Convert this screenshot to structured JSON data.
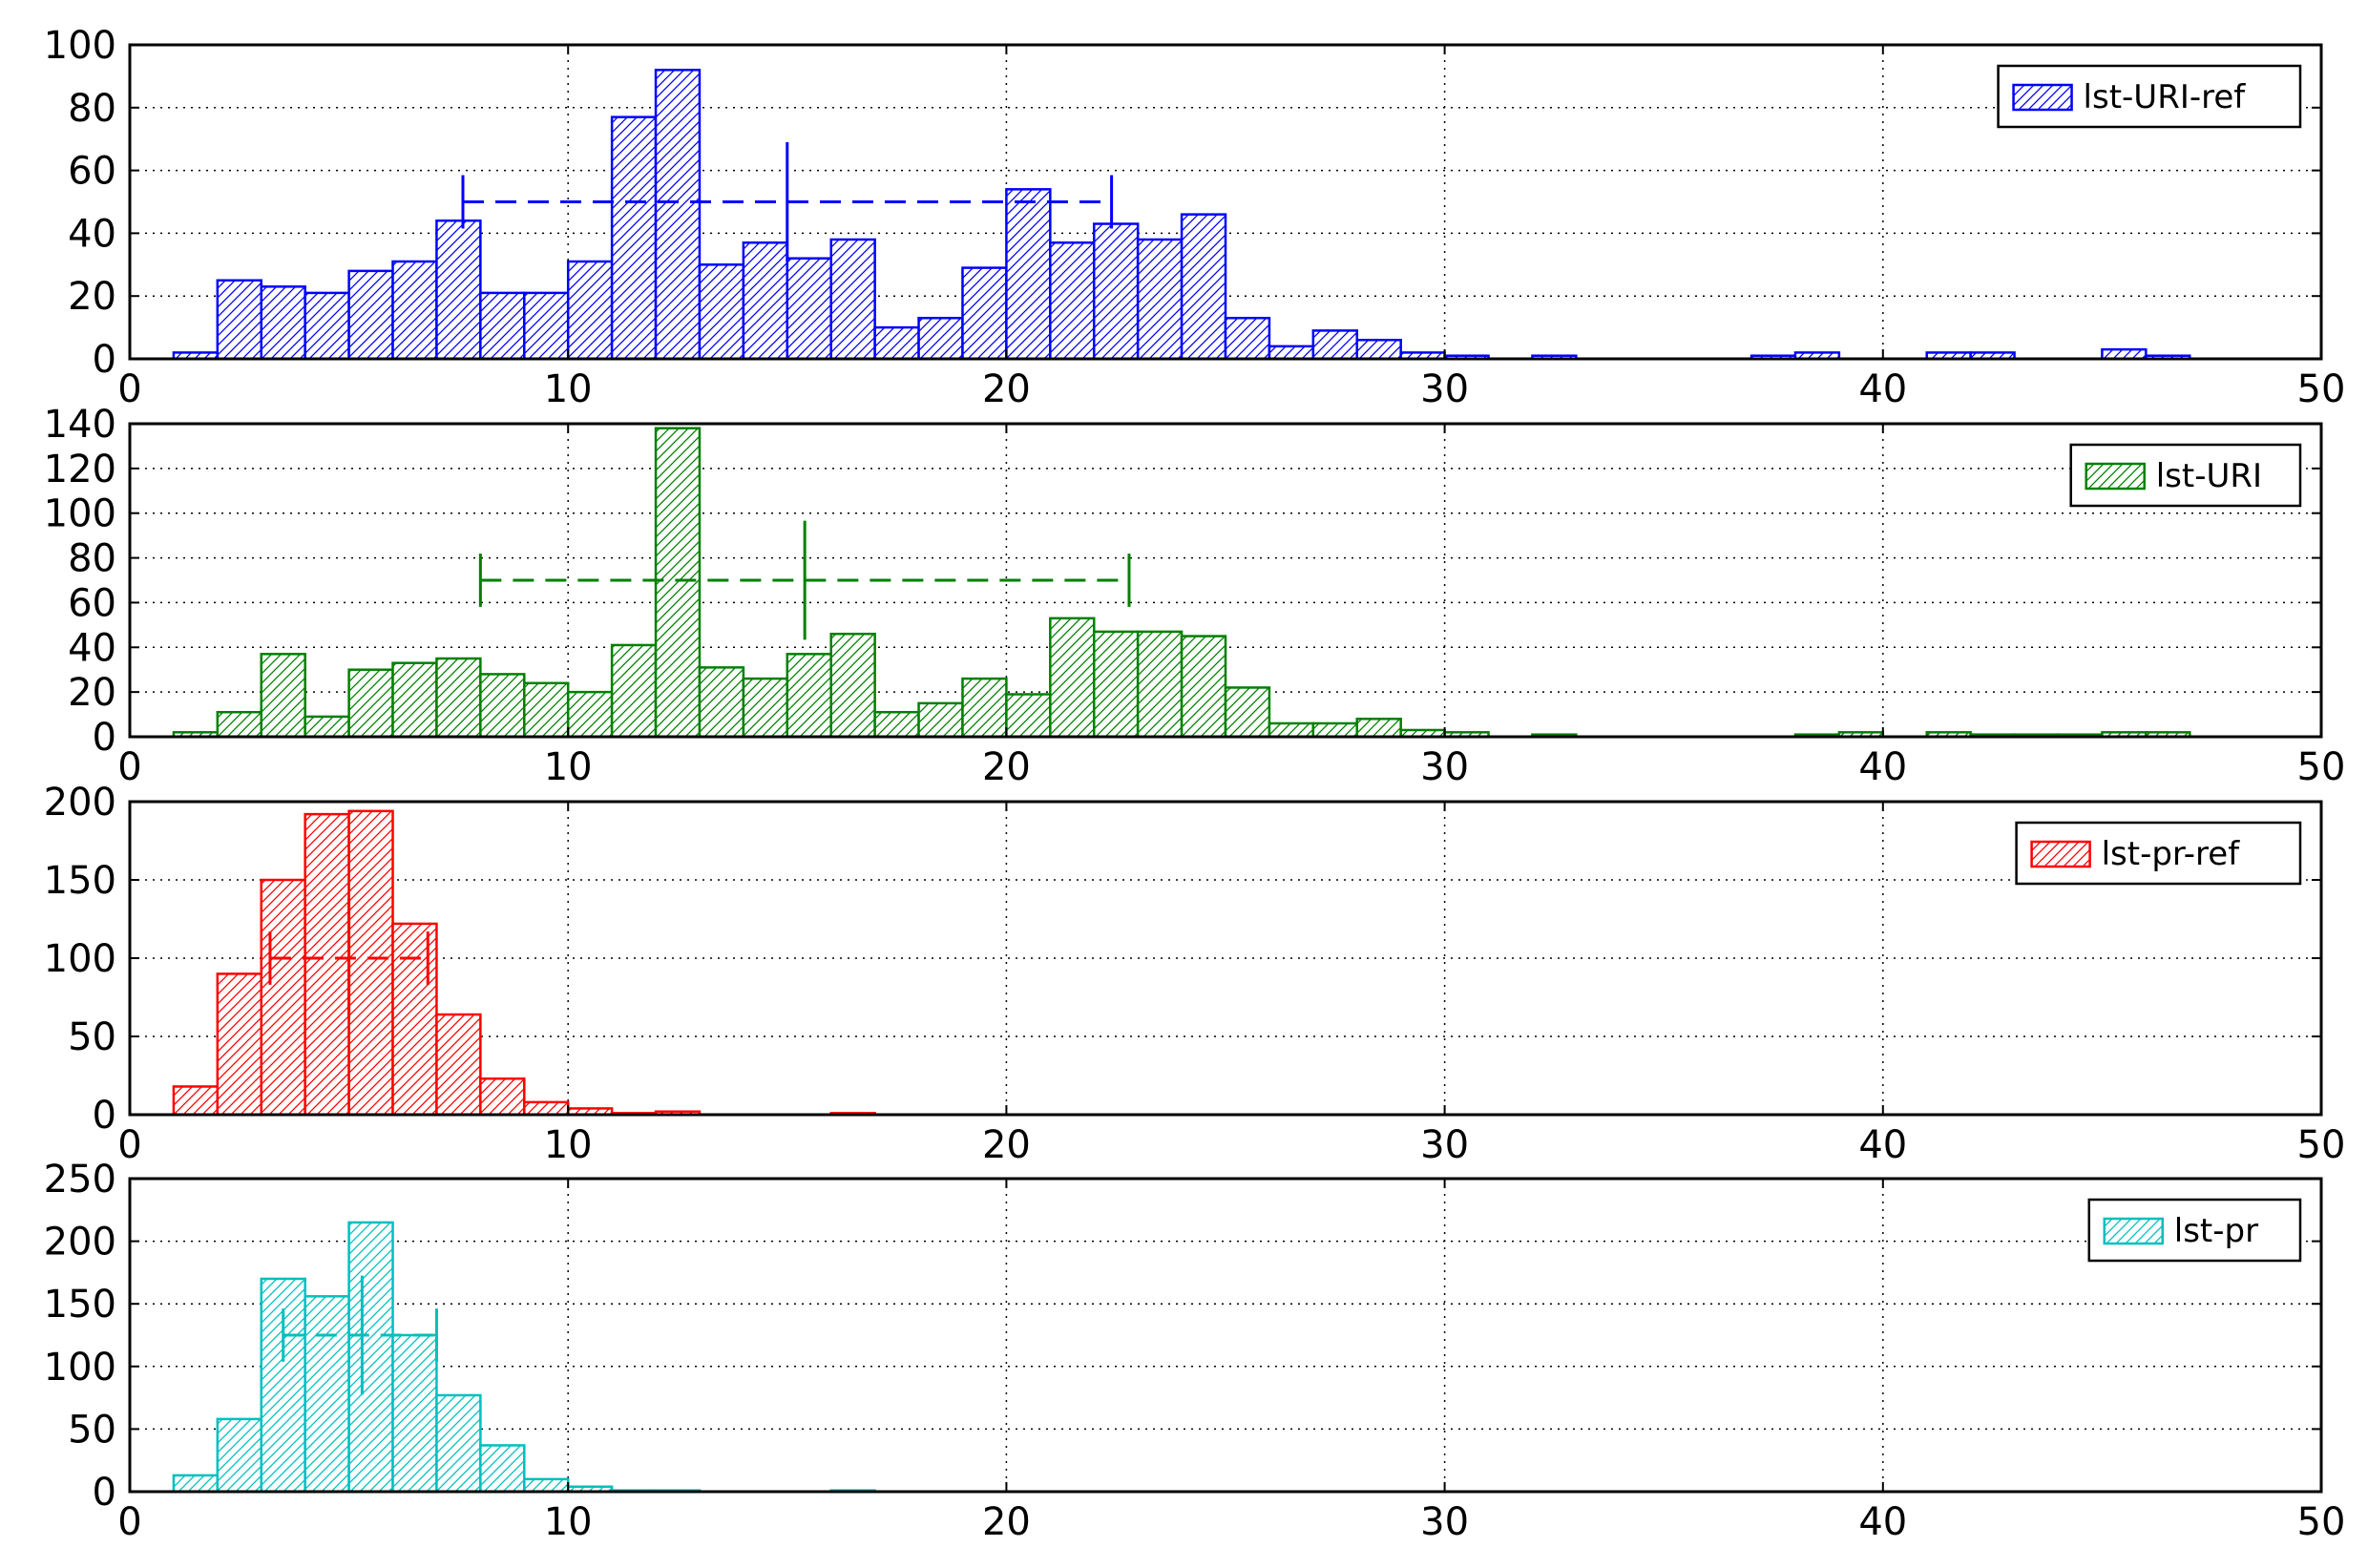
{
  "chart_data": [
    {
      "type": "bar",
      "legend": "lst-URI-ref",
      "legend_position": "top-right",
      "color": "#0000ff",
      "hatch": "diagonal",
      "xlim": [
        0,
        50
      ],
      "ylim": [
        0,
        100
      ],
      "xticks": [
        0,
        10,
        20,
        30,
        40,
        50
      ],
      "yticks": [
        0,
        20,
        40,
        60,
        80,
        100
      ],
      "grid": true,
      "bin_start": 1,
      "bin_width": 1,
      "values": [
        2,
        25,
        23,
        21,
        28,
        31,
        44,
        21,
        21,
        31,
        77,
        92,
        30,
        37,
        32,
        38,
        10,
        13,
        29,
        54,
        37,
        43,
        38,
        46,
        13,
        4,
        9,
        6,
        2,
        1,
        0,
        1,
        0,
        0,
        0,
        0,
        1,
        2,
        0,
        0,
        2,
        2,
        0,
        0,
        3,
        1
      ],
      "errorbar": {
        "center": 15.0,
        "low": 7.6,
        "high": 22.4,
        "y": 50
      }
    },
    {
      "type": "bar",
      "legend": "lst-URI",
      "legend_position": "top-right",
      "color": "#008000",
      "hatch": "diagonal",
      "xlim": [
        0,
        50
      ],
      "ylim": [
        0,
        140
      ],
      "xticks": [
        0,
        10,
        20,
        30,
        40,
        50
      ],
      "yticks": [
        0,
        20,
        40,
        60,
        80,
        100,
        120,
        140
      ],
      "grid": true,
      "bin_start": 1,
      "bin_width": 1,
      "values": [
        2,
        11,
        37,
        9,
        30,
        33,
        35,
        28,
        24,
        20,
        41,
        138,
        31,
        26,
        37,
        46,
        11,
        15,
        26,
        19,
        53,
        47,
        47,
        45,
        22,
        6,
        6,
        8,
        3,
        2,
        0,
        1,
        0,
        0,
        0,
        0,
        0,
        1,
        2,
        0,
        2,
        1,
        1,
        1,
        2,
        2
      ],
      "errorbar": {
        "center": 15.4,
        "low": 8.0,
        "high": 22.8,
        "y": 70
      }
    },
    {
      "type": "bar",
      "legend": "lst-pr-ref",
      "legend_position": "top-right",
      "color": "#ff0000",
      "hatch": "diagonal",
      "xlim": [
        0,
        50
      ],
      "ylim": [
        0,
        200
      ],
      "xticks": [
        0,
        10,
        20,
        30,
        40,
        50
      ],
      "yticks": [
        0,
        50,
        100,
        150,
        200
      ],
      "grid": true,
      "bin_start": 1,
      "bin_width": 1,
      "values": [
        18,
        90,
        150,
        192,
        194,
        122,
        64,
        23,
        8,
        4,
        1,
        2,
        0,
        0,
        0,
        1
      ],
      "errorbar": {
        "center": 5.0,
        "low": 3.2,
        "high": 6.8,
        "y": 100
      }
    },
    {
      "type": "bar",
      "legend": "lst-pr",
      "legend_position": "top-right",
      "color": "#00bfbf",
      "hatch": "diagonal",
      "xlim": [
        0,
        50
      ],
      "ylim": [
        0,
        250
      ],
      "xticks": [
        0,
        10,
        20,
        30,
        40,
        50
      ],
      "yticks": [
        0,
        50,
        100,
        150,
        200,
        250
      ],
      "grid": true,
      "bin_start": 1,
      "bin_width": 1,
      "values": [
        13,
        58,
        170,
        156,
        215,
        125,
        77,
        37,
        10,
        4,
        1,
        1,
        0,
        0,
        0,
        1
      ],
      "errorbar": {
        "center": 5.3,
        "low": 3.5,
        "high": 7.0,
        "y": 125
      }
    }
  ]
}
